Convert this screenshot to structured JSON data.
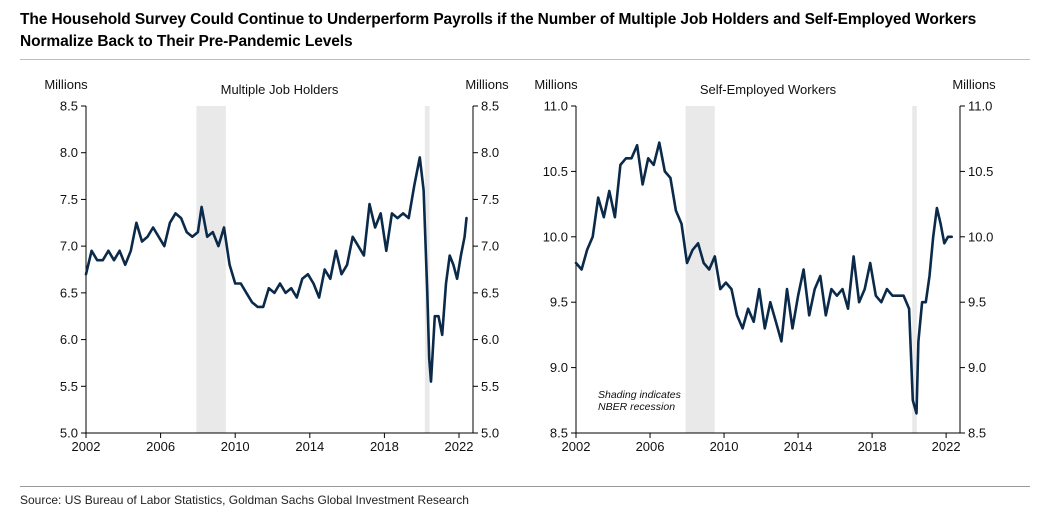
{
  "title": {
    "line1": "The Household Survey Could Continue to Underperform Payrolls if the Number of Multiple Job Holders and Self-Employed Workers",
    "line2": "Normalize Back to Their Pre-Pandemic Levels"
  },
  "source": "Source: US Bureau of Labor Statistics, Goldman Sachs Global Investment Research",
  "colors": {
    "line": "#0b2a4a",
    "recession": "#e9e9e9",
    "axis": "#000000"
  },
  "chart_data": [
    {
      "type": "line",
      "title": "Multiple Job Holders",
      "ylabel_left": "Millions",
      "ylabel_right": "Millions",
      "xlim": [
        2002,
        2022.75
      ],
      "ylim": [
        5.0,
        8.5
      ],
      "yticks": [
        "5.0",
        "5.5",
        "6.0",
        "6.5",
        "7.0",
        "7.5",
        "8.0",
        "8.5"
      ],
      "xticks": [
        "2002",
        "2006",
        "2010",
        "2014",
        "2018",
        "2022"
      ],
      "recessions": [
        [
          2007.92,
          2009.5
        ],
        [
          2020.17,
          2020.42
        ]
      ],
      "x": [
        2002.0,
        2002.3,
        2002.6,
        2002.9,
        2003.2,
        2003.5,
        2003.8,
        2004.1,
        2004.4,
        2004.7,
        2005.0,
        2005.3,
        2005.6,
        2005.9,
        2006.2,
        2006.5,
        2006.8,
        2007.1,
        2007.4,
        2007.7,
        2008.0,
        2008.2,
        2008.5,
        2008.8,
        2009.1,
        2009.4,
        2009.7,
        2010.0,
        2010.3,
        2010.6,
        2010.9,
        2011.2,
        2011.5,
        2011.8,
        2012.1,
        2012.4,
        2012.7,
        2013.0,
        2013.3,
        2013.6,
        2013.9,
        2014.2,
        2014.5,
        2014.8,
        2015.1,
        2015.4,
        2015.7,
        2016.0,
        2016.3,
        2016.6,
        2016.9,
        2017.2,
        2017.5,
        2017.8,
        2018.1,
        2018.4,
        2018.7,
        2019.0,
        2019.3,
        2019.6,
        2019.9,
        2020.1,
        2020.3,
        2020.4,
        2020.5,
        2020.7,
        2020.9,
        2021.1,
        2021.3,
        2021.5,
        2021.7,
        2021.9,
        2022.1,
        2022.3,
        2022.4
      ],
      "y": [
        6.7,
        6.95,
        6.85,
        6.85,
        6.95,
        6.85,
        6.95,
        6.8,
        6.95,
        7.25,
        7.05,
        7.1,
        7.2,
        7.1,
        7.0,
        7.25,
        7.35,
        7.3,
        7.15,
        7.1,
        7.15,
        7.42,
        7.1,
        7.15,
        7.0,
        7.2,
        6.8,
        6.6,
        6.6,
        6.5,
        6.4,
        6.35,
        6.35,
        6.55,
        6.5,
        6.6,
        6.5,
        6.55,
        6.45,
        6.65,
        6.7,
        6.6,
        6.45,
        6.75,
        6.65,
        6.95,
        6.7,
        6.8,
        7.1,
        7.0,
        6.9,
        7.45,
        7.2,
        7.35,
        6.95,
        7.35,
        7.3,
        7.35,
        7.3,
        7.65,
        7.95,
        7.6,
        6.5,
        5.8,
        5.55,
        6.25,
        6.25,
        6.05,
        6.6,
        6.9,
        6.8,
        6.65,
        6.9,
        7.1,
        7.3
      ]
    },
    {
      "type": "line",
      "title": "Self-Employed Workers",
      "ylabel_left": "Millions",
      "ylabel_right": "Millions",
      "xlim": [
        2002,
        2022.75
      ],
      "ylim": [
        8.5,
        11.0
      ],
      "yticks": [
        "8.5",
        "9.0",
        "9.5",
        "10.0",
        "10.5",
        "11.0"
      ],
      "xticks": [
        "2002",
        "2006",
        "2010",
        "2014",
        "2018",
        "2022"
      ],
      "recessions": [
        [
          2007.92,
          2009.5
        ],
        [
          2020.17,
          2020.42
        ]
      ],
      "annotation": [
        "Shading indicates",
        "NBER recession"
      ],
      "x": [
        2002.0,
        2002.3,
        2002.6,
        2002.9,
        2003.2,
        2003.5,
        2003.8,
        2004.1,
        2004.4,
        2004.7,
        2005.0,
        2005.3,
        2005.6,
        2005.9,
        2006.2,
        2006.5,
        2006.8,
        2007.1,
        2007.4,
        2007.7,
        2008.0,
        2008.3,
        2008.6,
        2008.9,
        2009.2,
        2009.5,
        2009.8,
        2010.1,
        2010.4,
        2010.7,
        2011.0,
        2011.3,
        2011.6,
        2011.9,
        2012.2,
        2012.5,
        2012.8,
        2013.1,
        2013.4,
        2013.7,
        2014.0,
        2014.3,
        2014.6,
        2014.9,
        2015.2,
        2015.5,
        2015.8,
        2016.1,
        2016.4,
        2016.7,
        2017.0,
        2017.3,
        2017.6,
        2017.9,
        2018.2,
        2018.5,
        2018.8,
        2019.1,
        2019.4,
        2019.7,
        2020.0,
        2020.2,
        2020.4,
        2020.5,
        2020.7,
        2020.9,
        2021.1,
        2021.3,
        2021.5,
        2021.7,
        2021.9,
        2022.1,
        2022.3
      ],
      "y": [
        9.8,
        9.75,
        9.9,
        10.0,
        10.3,
        10.15,
        10.35,
        10.15,
        10.55,
        10.6,
        10.6,
        10.7,
        10.4,
        10.6,
        10.55,
        10.72,
        10.5,
        10.45,
        10.2,
        10.1,
        9.8,
        9.9,
        9.95,
        9.8,
        9.75,
        9.85,
        9.6,
        9.65,
        9.6,
        9.4,
        9.3,
        9.45,
        9.35,
        9.6,
        9.3,
        9.5,
        9.35,
        9.2,
        9.6,
        9.3,
        9.55,
        9.75,
        9.4,
        9.6,
        9.7,
        9.4,
        9.6,
        9.55,
        9.6,
        9.45,
        9.85,
        9.5,
        9.6,
        9.8,
        9.55,
        9.5,
        9.6,
        9.55,
        9.55,
        9.55,
        9.45,
        8.75,
        8.65,
        9.2,
        9.5,
        9.5,
        9.7,
        10.0,
        10.22,
        10.1,
        9.95,
        10.0,
        10.0
      ]
    }
  ]
}
